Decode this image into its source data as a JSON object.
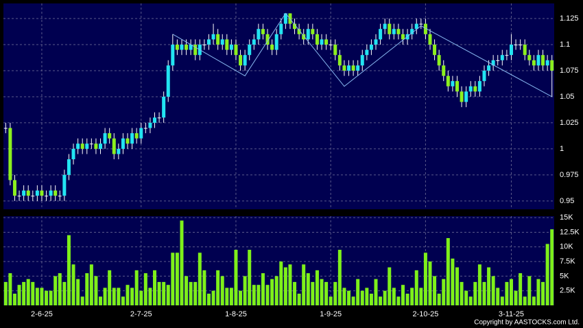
{
  "chart_data": [
    {
      "type": "candlestick",
      "open": [
        1.02,
        1.02,
        0.97,
        0.955,
        0.955,
        0.96,
        0.955,
        0.955,
        0.96,
        0.955,
        0.955,
        0.96,
        0.955,
        0.955,
        0.975,
        0.99,
        1.0,
        1.005,
        1.0,
        1.005,
        1.005,
        1.0,
        1.005,
        1.015,
        1.01,
        0.995,
        1.0,
        1.01,
        1.005,
        1.015,
        1.01,
        1.02,
        1.02,
        1.025,
        1.03,
        1.03,
        1.05,
        1.08,
        1.1,
        1.095,
        1.1,
        1.095,
        1.1,
        1.09,
        1.1,
        1.1,
        1.105,
        1.11,
        1.1,
        1.105,
        1.095,
        1.1,
        1.09,
        1.08,
        1.09,
        1.1,
        1.105,
        1.115,
        1.11,
        1.1,
        1.095,
        1.11,
        1.12,
        1.13,
        1.12,
        1.115,
        1.11,
        1.105,
        1.115,
        1.11,
        1.1,
        1.105,
        1.1,
        1.1,
        1.09,
        1.08,
        1.075,
        1.08,
        1.075,
        1.08,
        1.09,
        1.095,
        1.1,
        1.105,
        1.115,
        1.12,
        1.11,
        1.115,
        1.11,
        1.105,
        1.11,
        1.115,
        1.12,
        1.12,
        1.11,
        1.1,
        1.09,
        1.08,
        1.07,
        1.06,
        1.065,
        1.055,
        1.045,
        1.055,
        1.06,
        1.055,
        1.065,
        1.075,
        1.08,
        1.085,
        1.085,
        1.09,
        1.09,
        1.1,
        1.1,
        1.1,
        1.09,
        1.085,
        1.08,
        1.09,
        1.08,
        1.085
      ],
      "high": [
        1.025,
        1.025,
        0.975,
        0.96,
        0.965,
        0.965,
        0.96,
        0.965,
        0.965,
        0.96,
        0.965,
        0.965,
        0.96,
        0.98,
        0.995,
        1.005,
        1.01,
        1.01,
        1.01,
        1.01,
        1.01,
        1.01,
        1.02,
        1.02,
        1.015,
        1.005,
        1.015,
        1.015,
        1.02,
        1.02,
        1.025,
        1.025,
        1.03,
        1.035,
        1.035,
        1.055,
        1.085,
        1.11,
        1.105,
        1.105,
        1.105,
        1.105,
        1.105,
        1.105,
        1.105,
        1.11,
        1.12,
        1.115,
        1.11,
        1.11,
        1.105,
        1.105,
        1.095,
        1.095,
        1.105,
        1.11,
        1.12,
        1.12,
        1.115,
        1.105,
        1.115,
        1.125,
        1.13,
        1.13,
        1.125,
        1.12,
        1.115,
        1.12,
        1.12,
        1.115,
        1.11,
        1.11,
        1.105,
        1.105,
        1.095,
        1.085,
        1.085,
        1.085,
        1.085,
        1.095,
        1.1,
        1.105,
        1.11,
        1.12,
        1.125,
        1.125,
        1.12,
        1.12,
        1.115,
        1.115,
        1.12,
        1.125,
        1.125,
        1.125,
        1.115,
        1.105,
        1.095,
        1.085,
        1.075,
        1.07,
        1.07,
        1.06,
        1.06,
        1.065,
        1.065,
        1.07,
        1.08,
        1.085,
        1.09,
        1.09,
        1.095,
        1.095,
        1.11,
        1.105,
        1.105,
        1.105,
        1.095,
        1.09,
        1.095,
        1.095,
        1.09,
        1.09
      ],
      "low": [
        1.015,
        0.965,
        0.95,
        0.95,
        0.95,
        0.95,
        0.95,
        0.95,
        0.95,
        0.95,
        0.95,
        0.95,
        0.95,
        0.95,
        0.97,
        0.985,
        0.995,
        0.995,
        0.995,
        1.0,
        0.995,
        0.995,
        1.0,
        1.005,
        0.99,
        0.99,
        0.995,
        1.0,
        1.0,
        1.005,
        1.005,
        1.015,
        1.015,
        1.02,
        1.025,
        1.025,
        1.045,
        1.075,
        1.09,
        1.09,
        1.09,
        1.09,
        1.085,
        1.085,
        1.095,
        1.095,
        1.1,
        1.095,
        1.095,
        1.09,
        1.09,
        1.085,
        1.075,
        1.075,
        1.085,
        1.095,
        1.1,
        1.105,
        1.095,
        1.09,
        1.09,
        1.105,
        1.115,
        1.115,
        1.11,
        1.105,
        1.1,
        1.1,
        1.105,
        1.095,
        1.095,
        1.095,
        1.095,
        1.085,
        1.075,
        1.07,
        1.07,
        1.07,
        1.07,
        1.075,
        1.085,
        1.09,
        1.095,
        1.1,
        1.11,
        1.105,
        1.105,
        1.105,
        1.1,
        1.1,
        1.105,
        1.11,
        1.115,
        1.105,
        1.095,
        1.085,
        1.075,
        1.065,
        1.055,
        1.055,
        1.05,
        1.04,
        1.04,
        1.05,
        1.05,
        1.05,
        1.06,
        1.07,
        1.075,
        1.08,
        1.08,
        1.085,
        1.085,
        1.095,
        1.095,
        1.085,
        1.08,
        1.075,
        1.075,
        1.075,
        1.075,
        1.05
      ],
      "close": [
        1.02,
        0.97,
        0.955,
        0.955,
        0.96,
        0.955,
        0.955,
        0.96,
        0.955,
        0.955,
        0.96,
        0.955,
        0.955,
        0.975,
        0.99,
        1.0,
        1.005,
        1.0,
        1.005,
        1.005,
        1.0,
        1.005,
        1.015,
        1.01,
        0.995,
        1.0,
        1.01,
        1.005,
        1.015,
        1.01,
        1.02,
        1.02,
        1.025,
        1.03,
        1.03,
        1.05,
        1.08,
        1.1,
        1.095,
        1.1,
        1.095,
        1.1,
        1.09,
        1.1,
        1.1,
        1.105,
        1.11,
        1.1,
        1.105,
        1.095,
        1.1,
        1.09,
        1.08,
        1.09,
        1.1,
        1.105,
        1.115,
        1.11,
        1.1,
        1.095,
        1.11,
        1.12,
        1.13,
        1.12,
        1.115,
        1.11,
        1.105,
        1.115,
        1.11,
        1.1,
        1.105,
        1.1,
        1.1,
        1.09,
        1.08,
        1.075,
        1.08,
        1.075,
        1.08,
        1.09,
        1.095,
        1.1,
        1.105,
        1.115,
        1.12,
        1.11,
        1.115,
        1.11,
        1.105,
        1.11,
        1.115,
        1.12,
        1.12,
        1.11,
        1.1,
        1.09,
        1.08,
        1.07,
        1.06,
        1.065,
        1.055,
        1.045,
        1.055,
        1.06,
        1.055,
        1.065,
        1.075,
        1.08,
        1.085,
        1.085,
        1.09,
        1.09,
        1.1,
        1.1,
        1.1,
        1.09,
        1.085,
        1.08,
        1.09,
        1.08,
        1.085,
        1.075
      ],
      "up_color": "#22e4f2",
      "down_color": "#8cf01e",
      "flat_color": "#ffffff",
      "overlay": {
        "x": [
          37,
          53,
          62,
          75,
          92,
          121
        ],
        "values": [
          1.11,
          1.07,
          1.13,
          1.06,
          1.118,
          1.05
        ],
        "color": "#88b8f0"
      },
      "ylim": [
        0.942,
        1.1395
      ],
      "yticks": [
        0.95,
        0.975,
        1,
        1.025,
        1.05,
        1.075,
        1.1,
        1.125
      ],
      "grid": true
    },
    {
      "type": "bar",
      "categories": [
        null,
        null,
        null,
        null,
        null,
        null,
        null,
        null,
        "2-6-25",
        null,
        null,
        null,
        null,
        null,
        null,
        null,
        null,
        null,
        null,
        null,
        null,
        null,
        null,
        null,
        null,
        null,
        null,
        null,
        null,
        null,
        "2-7-25",
        null,
        null,
        null,
        null,
        null,
        null,
        null,
        null,
        null,
        null,
        null,
        null,
        null,
        null,
        null,
        null,
        null,
        null,
        null,
        null,
        "1-8-25",
        null,
        null,
        null,
        null,
        null,
        null,
        null,
        null,
        null,
        null,
        null,
        null,
        null,
        null,
        null,
        null,
        null,
        null,
        null,
        null,
        "1-9-25",
        null,
        null,
        null,
        null,
        null,
        null,
        null,
        null,
        null,
        null,
        null,
        null,
        null,
        null,
        null,
        null,
        null,
        null,
        null,
        null,
        "2-10-25",
        null,
        null,
        null,
        null,
        null,
        null,
        null,
        null,
        null,
        null,
        null,
        null,
        null,
        null,
        null,
        null,
        null,
        null,
        "3-11-25",
        null,
        null,
        null,
        null,
        null,
        null,
        null,
        null,
        null
      ],
      "values": [
        4000,
        5500,
        2000,
        3500,
        4000,
        4500,
        4000,
        3000,
        3000,
        2500,
        2500,
        5000,
        5500,
        4000,
        12000,
        7000,
        4500,
        1500,
        5500,
        7000,
        5000,
        1500,
        3000,
        6000,
        3000,
        3000,
        1500,
        3500,
        3000,
        6000,
        2500,
        5500,
        3000,
        6000,
        4000,
        4000,
        3500,
        9000,
        9000,
        14500,
        5000,
        4000,
        4000,
        9000,
        6000,
        2000,
        2500,
        6000,
        5000,
        3000,
        3000,
        9500,
        2500,
        5000,
        9500,
        3500,
        3500,
        5500,
        3500,
        4500,
        5000,
        7500,
        6500,
        7000,
        4000,
        2000,
        7000,
        5500,
        4000,
        6000,
        4500,
        4000,
        1500,
        4000,
        9500,
        3000,
        2500,
        1500,
        4500,
        2500,
        3000,
        2000,
        4500,
        1500,
        2500,
        6500,
        3000,
        1500,
        3500,
        2000,
        3000,
        6000,
        3000,
        9000,
        7500,
        5000,
        2000,
        4500,
        11500,
        8000,
        6500,
        4000,
        2500,
        1500,
        4000,
        7000,
        4000,
        6500,
        5000,
        3000,
        1500,
        4000,
        4500,
        2500,
        5500,
        1500,
        5000,
        1500,
        4500,
        4000,
        10500,
        13000
      ],
      "color": "#7ef01a",
      "ylim": [
        0,
        15250
      ],
      "yticks": [
        {
          "value": 2500,
          "label": "2.5K"
        },
        {
          "value": 5000,
          "label": "5K"
        },
        {
          "value": 7500,
          "label": "7.5K"
        },
        {
          "value": 10000,
          "label": "10K"
        },
        {
          "value": 12500,
          "label": "12.5K"
        },
        {
          "value": 15000,
          "label": "15K"
        }
      ],
      "grid": true,
      "footnote": "Copyright by AASTOCKS.com Ltd."
    }
  ]
}
